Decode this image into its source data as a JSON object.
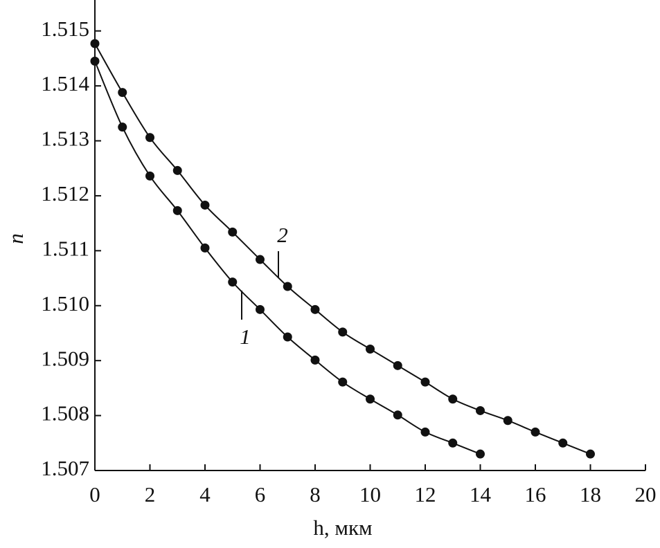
{
  "chart_data": {
    "type": "line",
    "xlabel": "h, мкм",
    "ylabel": "n",
    "xlim": [
      0,
      20
    ],
    "xticks": [
      0,
      2,
      4,
      6,
      8,
      10,
      12,
      14,
      16,
      18,
      20
    ],
    "ylim": [
      1.507,
      1.5155
    ],
    "yticks": [
      1.507,
      1.508,
      1.509,
      {
        "value": 1.51,
        "label": "1.510"
      },
      1.511,
      1.512,
      1.513,
      1.514,
      1.515
    ],
    "color": "#111111",
    "series": [
      {
        "name": "1",
        "x": [
          0,
          1,
          2,
          3,
          4,
          5,
          6,
          7,
          8,
          9,
          10,
          11,
          12,
          13,
          14
        ],
        "values": [
          1.51445,
          1.51325,
          1.51236,
          1.51173,
          1.51105,
          1.51043,
          1.50993,
          1.50943,
          1.50901,
          1.50861,
          1.5083,
          1.50801,
          1.5077,
          1.5075,
          1.5073
        ]
      },
      {
        "name": "2",
        "x": [
          0,
          1,
          2,
          3,
          4,
          5,
          6,
          7,
          8,
          9,
          10,
          11,
          12,
          13,
          14,
          15,
          16,
          17,
          18
        ],
        "values": [
          1.51477,
          1.51388,
          1.51306,
          1.51246,
          1.51183,
          1.51134,
          1.51084,
          1.51035,
          1.50993,
          1.50952,
          1.50921,
          1.50891,
          1.50861,
          1.5083,
          1.50809,
          1.50791,
          1.5077,
          1.5075,
          1.5073
        ]
      }
    ]
  }
}
